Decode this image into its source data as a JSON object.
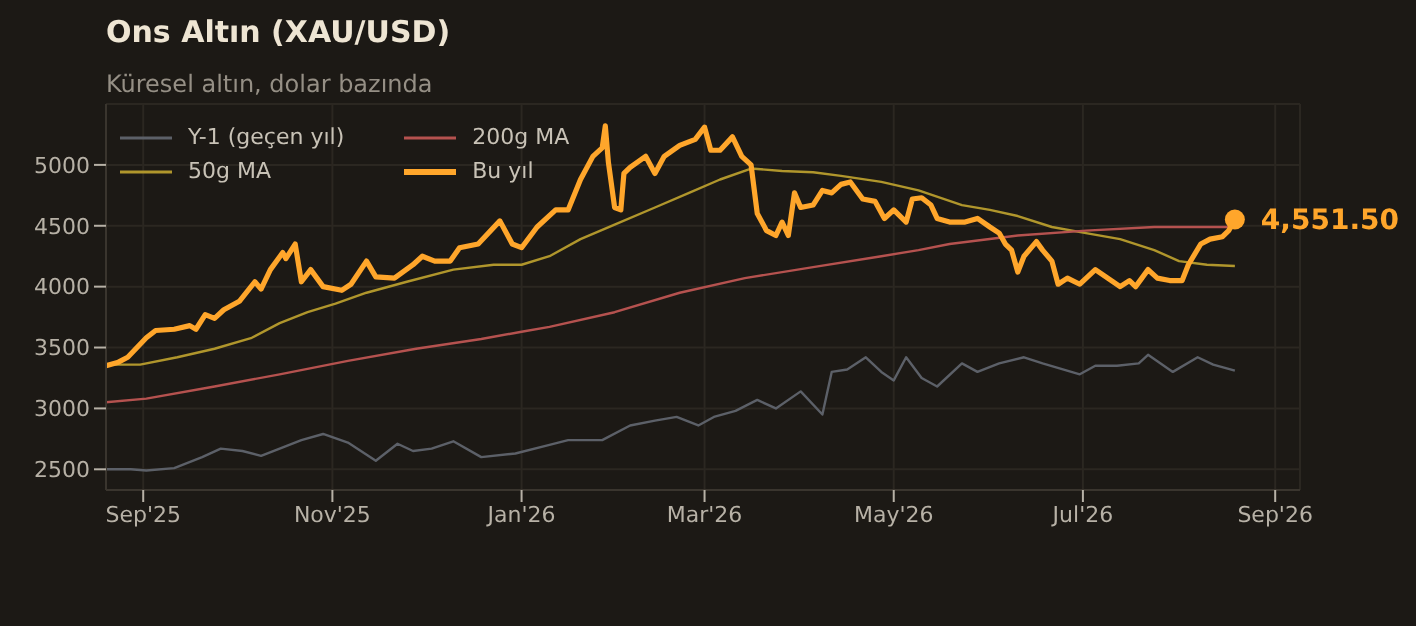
{
  "chart_data": {
    "type": "line",
    "title": "Ons Altın (XAU/USD)",
    "subtitle": "Küresel altın, dolar bazında",
    "xlim": [
      "2025-08-20",
      "2026-09-09"
    ],
    "xticks": [
      {
        "value": "2025-09-01",
        "label": "Sep'25"
      },
      {
        "value": "2025-11-01",
        "label": "Nov'25"
      },
      {
        "value": "2026-01-01",
        "label": "Jan'26"
      },
      {
        "value": "2026-03-01",
        "label": "Mar'26"
      },
      {
        "value": "2026-05-01",
        "label": "May'26"
      },
      {
        "value": "2026-07-01",
        "label": "Jul'26"
      },
      {
        "value": "2026-09-01",
        "label": "Sep'26"
      }
    ],
    "ylim": [
      2330,
      5500
    ],
    "yticks": [
      2500,
      3000,
      3500,
      4000,
      4500,
      5000
    ],
    "grid": true,
    "legend": "top left",
    "marker": "none",
    "annotations": [
      {
        "text": "4,551.50",
        "x": "2026-08-19",
        "y": 4551.5
      }
    ],
    "series": [
      {
        "name": "Y-1 (geçen yıl)",
        "color": "#5c6068",
        "x": [
          "2025-08-20",
          "2025-08-28",
          "2025-09-02",
          "2025-09-11",
          "2025-09-20",
          "2025-09-26",
          "2025-10-03",
          "2025-10-09",
          "2025-10-15",
          "2025-10-22",
          "2025-10-29",
          "2025-11-06",
          "2025-11-15",
          "2025-11-22",
          "2025-11-27",
          "2025-12-03",
          "2025-12-10",
          "2025-12-19",
          "2025-12-30",
          "2026-01-10",
          "2026-01-16",
          "2026-01-27",
          "2026-02-05",
          "2026-02-13",
          "2026-02-20",
          "2026-02-27",
          "2026-03-04",
          "2026-03-11",
          "2026-03-18",
          "2026-03-24",
          "2026-04-01",
          "2026-04-08",
          "2026-04-11",
          "2026-04-16",
          "2026-04-22",
          "2026-04-27",
          "2026-05-01",
          "2026-05-05",
          "2026-05-10",
          "2026-05-15",
          "2026-05-23",
          "2026-05-28",
          "2026-06-04",
          "2026-06-12",
          "2026-06-18",
          "2026-06-30",
          "2026-07-05",
          "2026-07-12",
          "2026-07-19",
          "2026-07-22",
          "2026-07-30",
          "2026-08-07",
          "2026-08-12",
          "2026-08-19"
        ],
        "values": [
          2500,
          2500,
          2490,
          2510,
          2600,
          2670,
          2650,
          2610,
          2670,
          2740,
          2790,
          2720,
          2570,
          2710,
          2650,
          2670,
          2730,
          2600,
          2630,
          2700,
          2740,
          2740,
          2860,
          2900,
          2930,
          2860,
          2930,
          2980,
          3070,
          3000,
          3140,
          2950,
          3300,
          3320,
          3420,
          3300,
          3230,
          3420,
          3250,
          3180,
          3370,
          3300,
          3370,
          3420,
          3370,
          3280,
          3350,
          3350,
          3370,
          3440,
          3300,
          3420,
          3360,
          3310
        ]
      },
      {
        "name": "50g MA",
        "color": "#b0962c",
        "x": [
          "2025-08-20",
          "2025-08-31",
          "2025-09-12",
          "2025-09-24",
          "2025-10-06",
          "2025-10-15",
          "2025-10-24",
          "2025-11-02",
          "2025-11-12",
          "2025-11-25",
          "2025-12-10",
          "2025-12-23",
          "2026-01-01",
          "2026-01-10",
          "2026-01-20",
          "2026-01-31",
          "2026-02-13",
          "2026-02-24",
          "2026-03-06",
          "2026-03-16",
          "2026-03-26",
          "2026-04-05",
          "2026-04-14",
          "2026-04-27",
          "2026-05-09",
          "2026-05-23",
          "2026-06-01",
          "2026-06-10",
          "2026-06-21",
          "2026-07-02",
          "2026-07-13",
          "2026-07-24",
          "2026-08-01",
          "2026-08-10",
          "2026-08-19"
        ],
        "values": [
          3360,
          3360,
          3420,
          3490,
          3580,
          3700,
          3790,
          3860,
          3950,
          4040,
          4140,
          4180,
          4180,
          4250,
          4390,
          4510,
          4650,
          4770,
          4880,
          4970,
          4950,
          4940,
          4910,
          4860,
          4790,
          4670,
          4630,
          4580,
          4490,
          4440,
          4390,
          4300,
          4210,
          4180,
          4170
        ]
      },
      {
        "name": "200g MA",
        "color": "#b5524f",
        "x": [
          "2025-08-20",
          "2025-09-02",
          "2025-09-24",
          "2025-10-15",
          "2025-11-06",
          "2025-11-28",
          "2025-12-19",
          "2026-01-01",
          "2026-01-10",
          "2026-01-31",
          "2026-02-21",
          "2026-03-14",
          "2026-04-05",
          "2026-04-27",
          "2026-05-09",
          "2026-05-19",
          "2026-06-10",
          "2026-07-02",
          "2026-07-24",
          "2026-08-19"
        ],
        "values": [
          3050,
          3080,
          3180,
          3280,
          3390,
          3490,
          3570,
          3630,
          3670,
          3790,
          3950,
          4070,
          4160,
          4250,
          4300,
          4350,
          4420,
          4460,
          4490,
          4490
        ]
      },
      {
        "name": "Bu yıl",
        "color": "#ffa62b",
        "x": [
          "2025-08-20",
          "2025-08-24",
          "2025-08-27",
          "2025-09-02",
          "2025-09-05",
          "2025-09-11",
          "2025-09-16",
          "2025-09-18",
          "2025-09-21",
          "2025-09-24",
          "2025-09-27",
          "2025-10-02",
          "2025-10-07",
          "2025-10-09",
          "2025-10-12",
          "2025-10-16",
          "2025-10-17",
          "2025-10-20",
          "2025-10-22",
          "2025-10-25",
          "2025-10-29",
          "2025-11-04",
          "2025-11-07",
          "2025-11-12",
          "2025-11-15",
          "2025-11-21",
          "2025-11-27",
          "2025-11-30",
          "2025-12-04",
          "2025-12-09",
          "2025-12-12",
          "2025-12-18",
          "2025-12-25",
          "2025-12-29",
          "2026-01-01",
          "2026-01-06",
          "2026-01-12",
          "2026-01-16",
          "2026-01-20",
          "2026-01-24",
          "2026-01-27",
          "2026-01-28",
          "2026-01-29",
          "2026-01-31",
          "2026-02-02",
          "2026-02-03",
          "2026-02-05",
          "2026-02-10",
          "2026-02-13",
          "2026-02-16",
          "2026-02-21",
          "2026-02-26",
          "2026-03-01",
          "2026-03-03",
          "2026-03-06",
          "2026-03-10",
          "2026-03-13",
          "2026-03-16",
          "2026-03-18",
          "2026-03-21",
          "2026-03-24",
          "2026-03-26",
          "2026-03-28",
          "2026-03-30",
          "2026-04-01",
          "2026-04-05",
          "2026-04-08",
          "2026-04-11",
          "2026-04-14",
          "2026-04-17",
          "2026-04-21",
          "2026-04-25",
          "2026-04-28",
          "2026-05-01",
          "2026-05-05",
          "2026-05-07",
          "2026-05-10",
          "2026-05-13",
          "2026-05-15",
          "2026-05-19",
          "2026-05-24",
          "2026-05-28",
          "2026-06-01",
          "2026-06-04",
          "2026-06-06",
          "2026-06-08",
          "2026-06-10",
          "2026-06-12",
          "2026-06-16",
          "2026-06-18",
          "2026-06-21",
          "2026-06-23",
          "2026-06-26",
          "2026-06-30",
          "2026-07-05",
          "2026-07-09",
          "2026-07-13",
          "2026-07-16",
          "2026-07-18",
          "2026-07-22",
          "2026-07-25",
          "2026-07-29",
          "2026-08-02",
          "2026-08-04",
          "2026-08-08",
          "2026-08-11",
          "2026-08-15",
          "2026-08-17",
          "2026-08-19"
        ],
        "values": [
          3350,
          3380,
          3420,
          3580,
          3640,
          3650,
          3680,
          3650,
          3770,
          3740,
          3810,
          3880,
          4040,
          3980,
          4140,
          4280,
          4230,
          4350,
          4040,
          4140,
          4000,
          3970,
          4020,
          4210,
          4080,
          4070,
          4180,
          4250,
          4210,
          4210,
          4320,
          4350,
          4540,
          4350,
          4320,
          4490,
          4630,
          4630,
          4880,
          5070,
          5140,
          5320,
          5020,
          4650,
          4630,
          4930,
          4980,
          5070,
          4930,
          5070,
          5160,
          5210,
          5310,
          5120,
          5120,
          5230,
          5070,
          5000,
          4600,
          4460,
          4420,
          4530,
          4420,
          4770,
          4650,
          4670,
          4790,
          4770,
          4840,
          4860,
          4720,
          4700,
          4560,
          4630,
          4530,
          4720,
          4730,
          4670,
          4560,
          4530,
          4530,
          4560,
          4490,
          4440,
          4350,
          4300,
          4120,
          4250,
          4370,
          4300,
          4210,
          4020,
          4070,
          4020,
          4140,
          4070,
          4000,
          4050,
          4000,
          4140,
          4070,
          4050,
          4050,
          4180,
          4350,
          4390,
          4410,
          4460,
          4551.5
        ]
      }
    ]
  }
}
